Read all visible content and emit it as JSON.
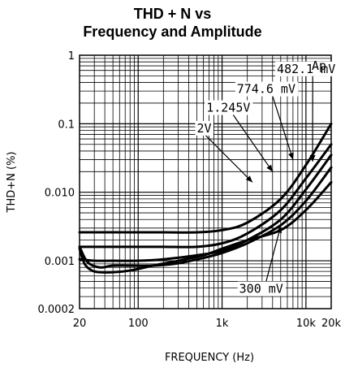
{
  "chart_data": {
    "type": "line",
    "title_line1": "THD + N vs",
    "title_line2": "Frequency and Amplitude",
    "xlabel": "FREQUENCY (Hz)",
    "ylabel": "THD+N (%)",
    "xscale": "log",
    "yscale": "log",
    "xlim": [
      20,
      20000
    ],
    "ylim": [
      0.0002,
      1
    ],
    "grid": true,
    "corner_label": "Ap",
    "x_ticks": [
      {
        "value": 20,
        "label": "20"
      },
      {
        "value": 100,
        "label": "100"
      },
      {
        "value": 1000,
        "label": "1k"
      },
      {
        "value": 10000,
        "label": "10k"
      },
      {
        "value": 20000,
        "label": "20k"
      }
    ],
    "y_ticks": [
      {
        "value": 1,
        "label": "1"
      },
      {
        "value": 0.1,
        "label": "0.1"
      },
      {
        "value": 0.01,
        "label": "0.010"
      },
      {
        "value": 0.001,
        "label": "0.001"
      },
      {
        "value": 0.0002,
        "label": "0.0002"
      }
    ],
    "series": [
      {
        "name": "2V",
        "x": [
          20,
          25,
          30,
          40,
          60,
          100,
          200,
          500,
          1000,
          2000,
          5000,
          10000,
          20000
        ],
        "y": [
          0.0026,
          0.0026,
          0.0026,
          0.0026,
          0.0026,
          0.0026,
          0.0026,
          0.0026,
          0.0028,
          0.0036,
          0.008,
          0.025,
          0.1
        ]
      },
      {
        "name": "1.245V",
        "x": [
          20,
          30,
          50,
          100,
          200,
          500,
          1000,
          2000,
          5000,
          10000,
          20000
        ],
        "y": [
          0.0016,
          0.0016,
          0.0016,
          0.0016,
          0.0016,
          0.0016,
          0.0018,
          0.0025,
          0.0055,
          0.016,
          0.05
        ]
      },
      {
        "name": "774.6 mV",
        "x": [
          20,
          30,
          50,
          100,
          200,
          500,
          1000,
          2000,
          5000,
          10000,
          20000
        ],
        "y": [
          0.00105,
          0.001,
          0.001,
          0.001,
          0.00105,
          0.0012,
          0.0014,
          0.002,
          0.004,
          0.011,
          0.035
        ]
      },
      {
        "name": "482.1 mV",
        "x": [
          20,
          25,
          35,
          50,
          80,
          150,
          300,
          600,
          1000,
          2000,
          5000,
          10000,
          20000
        ],
        "y": [
          0.0016,
          0.00095,
          0.0008,
          0.00085,
          0.00085,
          0.00085,
          0.00092,
          0.0011,
          0.0013,
          0.0018,
          0.0033,
          0.0075,
          0.023
        ]
      },
      {
        "name": "300 mV",
        "x": [
          20,
          23,
          28,
          35,
          50,
          80,
          150,
          300,
          600,
          1000,
          2000,
          5000,
          10000,
          20000
        ],
        "y": [
          0.0015,
          0.0009,
          0.00072,
          0.00068,
          0.00068,
          0.00072,
          0.00085,
          0.001,
          0.0012,
          0.0015,
          0.002,
          0.0028,
          0.0055,
          0.014
        ]
      }
    ],
    "annotations": [
      {
        "text": "482.1 mV",
        "x": 4500,
        "y": 0.55,
        "arrow_to": [
          12000,
          0.028
        ]
      },
      {
        "text": "774.6 mV",
        "x": 1500,
        "y": 0.28,
        "arrow_to": [
          7000,
          0.03
        ]
      },
      {
        "text": "1.245V",
        "x": 650,
        "y": 0.15,
        "arrow_to": [
          4000,
          0.02
        ]
      },
      {
        "text": "2V",
        "x": 500,
        "y": 0.075,
        "arrow_to": [
          2300,
          0.014
        ]
      },
      {
        "text": "300 mV",
        "x": 1600,
        "y": 0.00034,
        "arrow_to": [
          5000,
          0.0032
        ]
      }
    ]
  },
  "colors": {
    "line": "#000000",
    "grid": "#000000",
    "background": "#ffffff"
  }
}
